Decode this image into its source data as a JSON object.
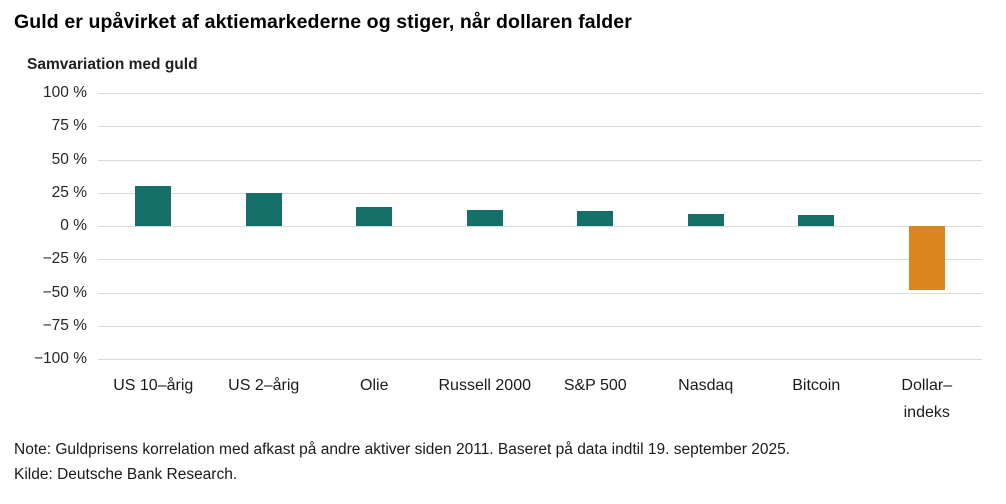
{
  "title": "Guld er upåvirket af aktiemarkederne og stiger, når dollaren falder",
  "footer": {
    "note": "Note: Guldprisens korrelation med afkast på andre aktiver siden 2011. Baseret på data indtil 19. september 2025.",
    "source": "Kilde: Deutsche Bank Research."
  },
  "colors": {
    "bar_teal": "#15706A",
    "bar_orange": "#D9861E",
    "gridline": "#D9D9D9"
  },
  "chart_data": {
    "type": "bar",
    "title": "Guld er upåvirket af aktiemarkederne og stiger, når dollaren falder",
    "ylabel": "Samvariation med guld",
    "xlabel": "",
    "unit": "%",
    "categories": [
      "US 10–årig",
      "US 2–årig",
      "Olie",
      "Russell 2000",
      "S&P 500",
      "Nasdaq",
      "Bitcoin",
      "Dollar–\nindeks"
    ],
    "values": [
      30,
      25,
      14,
      12,
      11,
      9,
      8,
      -48
    ],
    "bar_colors": [
      "#15706A",
      "#15706A",
      "#15706A",
      "#15706A",
      "#15706A",
      "#15706A",
      "#15706A",
      "#D9861E"
    ],
    "ylim": [
      -100,
      100
    ],
    "ytick_step": 25,
    "ytick_labels": [
      "100 %",
      "75 %",
      "50 %",
      "25 %",
      "0 %",
      "−25 %",
      "−50 %",
      "−75 %",
      "−100 %"
    ],
    "grid": true,
    "legend_position": "none"
  }
}
